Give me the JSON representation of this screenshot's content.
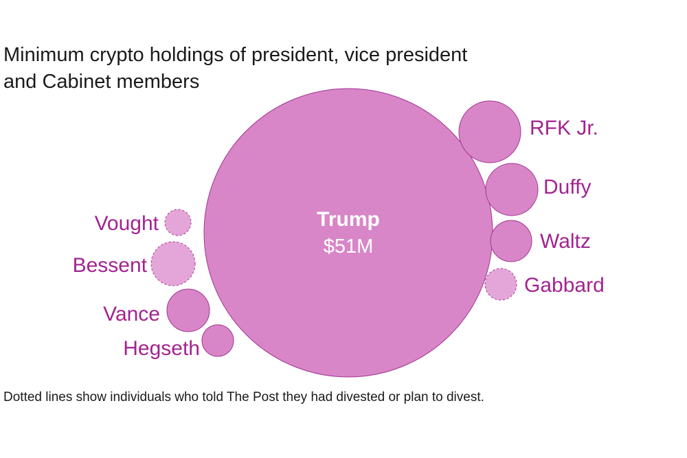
{
  "title_lines": [
    "Minimum crypto holdings of president, vice president",
    "and Cabinet members"
  ],
  "footnote": "Dotted lines show individuals who told The Post they had divested or plan to divest.",
  "colors": {
    "bubble_fill": "#d886c8",
    "bubble_stroke": "#a2338f",
    "divested_fill": "#e4a6d9",
    "label_text": "#a2238f",
    "center_label_text": "#ffffff"
  },
  "chart_data": {
    "type": "bubble",
    "title": "Minimum crypto holdings of president, vice president and Cabinet members",
    "note": "Dotted lines show individuals who told The Post they had divested or plan to divest.",
    "bubbles": [
      {
        "name": "Trump",
        "value_label": "$51M",
        "divested": false
      },
      {
        "name": "RFK Jr.",
        "divested": false
      },
      {
        "name": "Duffy",
        "divested": false
      },
      {
        "name": "Waltz",
        "divested": false
      },
      {
        "name": "Gabbard",
        "divested": true
      },
      {
        "name": "Vought",
        "divested": true
      },
      {
        "name": "Bessent",
        "divested": true
      },
      {
        "name": "Vance",
        "divested": false
      },
      {
        "name": "Hegseth",
        "divested": false
      }
    ]
  }
}
